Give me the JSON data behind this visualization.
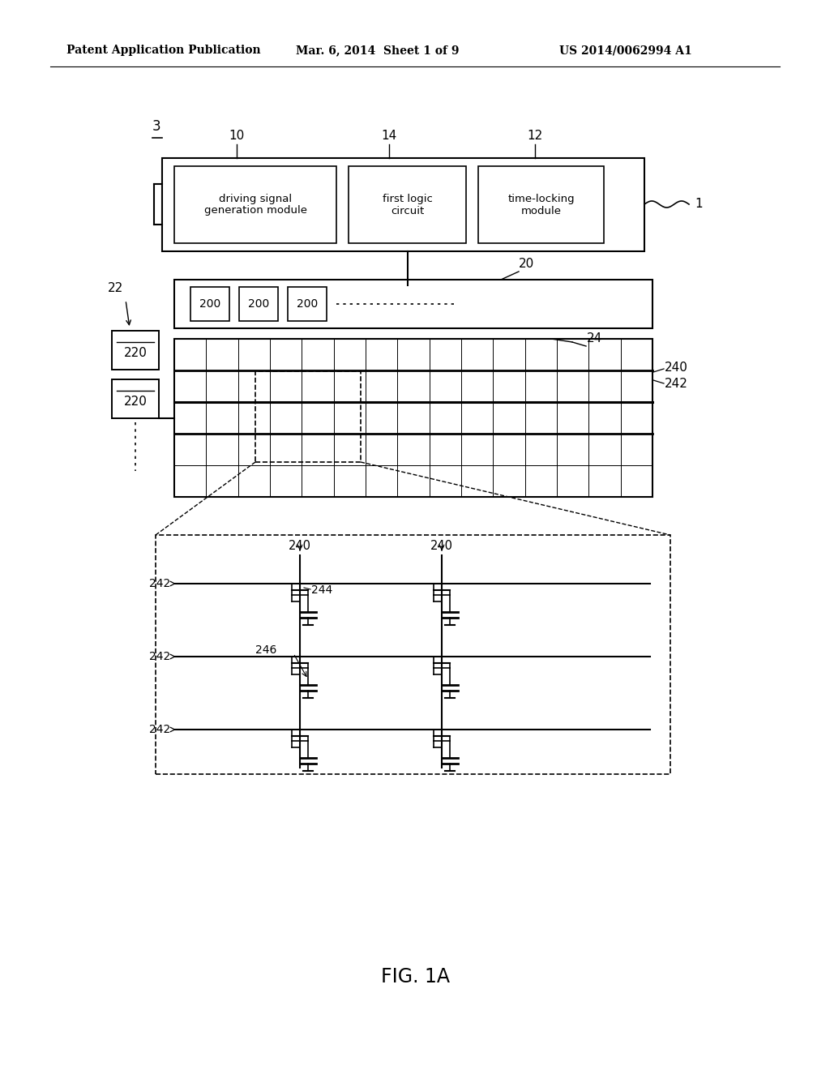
{
  "bg_color": "#ffffff",
  "header_left": "Patent Application Publication",
  "header_mid": "Mar. 6, 2014  Sheet 1 of 9",
  "header_right": "US 2014/0062994 A1",
  "fig_label": "FIG. 1A",
  "label_3": "3",
  "label_1": "1",
  "label_10": "10",
  "label_14": "14",
  "label_12": "12",
  "label_22": "22",
  "label_20": "20",
  "label_24": "24",
  "label_240": "240",
  "label_242": "242",
  "label_244": "244",
  "label_246": "246",
  "box_driving": "driving signal\ngeneration module",
  "box_logic": "first logic\ncircuit",
  "box_timing": "time-locking\nmodule",
  "box_200": "200",
  "box_220": "220"
}
